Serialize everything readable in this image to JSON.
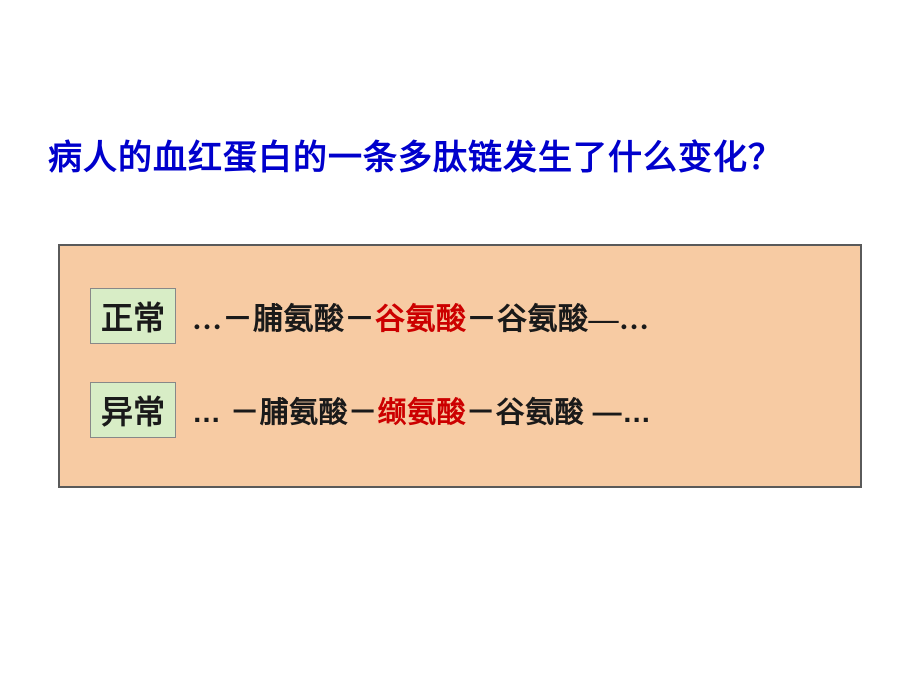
{
  "slide": {
    "background_color": "#ffffff",
    "title": {
      "text": "病人的血红蛋白的一条多肽链发生了什么变化？",
      "color": "#0000cc",
      "fontsize": 34,
      "font_weight": "bold"
    },
    "content_box": {
      "background_color": "#f7cba3",
      "border_color": "#5a5a5a",
      "label_background": "#d8edc6",
      "highlight_color": "#cc0000",
      "text_color": "#1a1a1a",
      "rows": [
        {
          "label": "正常",
          "seq_prefix": "…－脯氨酸－",
          "seq_highlight": "谷氨酸",
          "seq_suffix": "－谷氨酸—…"
        },
        {
          "label": "异常",
          "seq_prefix": "… －脯氨酸－",
          "seq_highlight": "缬氨酸",
          "seq_suffix": "－谷氨酸 —…"
        }
      ]
    }
  }
}
